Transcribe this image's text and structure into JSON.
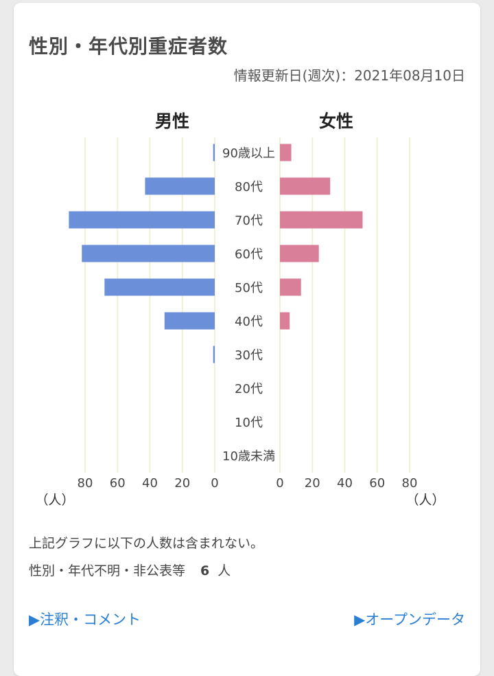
{
  "title": "性別・年代別重症者数",
  "updated": "情報更新日(週次)：2021年08月10日",
  "chart_data": {
    "type": "bar",
    "orientation": "horizontal-pyramid",
    "categories": [
      "90歳以上",
      "80代",
      "70代",
      "60代",
      "50代",
      "40代",
      "30代",
      "20代",
      "10代",
      "10歳未満"
    ],
    "series": [
      {
        "name": "男性",
        "color": "#6b8fd9",
        "values": [
          1,
          43,
          90,
          82,
          68,
          31,
          1,
          0,
          0,
          0
        ]
      },
      {
        "name": "女性",
        "color": "#d97f9a",
        "values": [
          7,
          31,
          51,
          24,
          13,
          6,
          0,
          0,
          0,
          0
        ]
      }
    ],
    "xticks": [
      "80",
      "60",
      "40",
      "20",
      "0"
    ],
    "xticks_right": [
      "0",
      "20",
      "40",
      "60",
      "80"
    ],
    "xlim": [
      0,
      80
    ],
    "unit_label": "（人）",
    "gridlines": true
  },
  "notes": {
    "line1": "上記グラフに以下の人数は含まれない。",
    "line2_label": "性別・年代不明・非公表等",
    "line2_count": "6",
    "line2_unit": "人"
  },
  "links": {
    "comments": "▶注釈・コメント",
    "open_data": "▶オープンデータ"
  },
  "colors": {
    "male": "#6b8fd9",
    "female": "#d97f9a",
    "grid": "#f1f0d6",
    "link": "#2a7fd4"
  }
}
